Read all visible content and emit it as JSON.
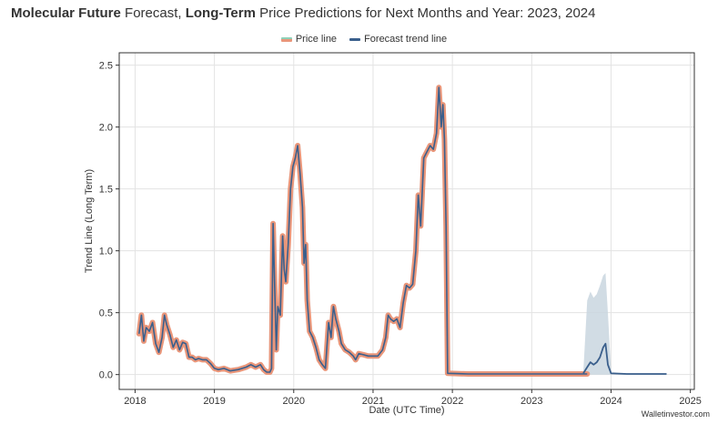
{
  "title": {
    "bold1": "Molecular Future",
    "text1": " Forecast, ",
    "bold2": "Long-Term",
    "text2": " Price Predictions for Next Months and Year: 2023, 2024"
  },
  "watermark": "Walletinvestor.com",
  "colors": {
    "price_outer": "#e9967a",
    "price_inner": "#8ed1b8",
    "trend": "#3a5f8c",
    "band": "#c9d6df"
  },
  "chart_data": {
    "type": "line",
    "xlabel": "Date (UTC Time)",
    "ylabel": "Trend Line (Long Term)",
    "xlim": [
      2017.8,
      2025.05
    ],
    "ylim": [
      -0.12,
      2.6
    ],
    "x_ticks": [
      2018,
      2019,
      2020,
      2021,
      2022,
      2023,
      2024,
      2025
    ],
    "y_ticks": [
      0.0,
      0.5,
      1.0,
      1.5,
      2.0,
      2.5
    ],
    "grid": true,
    "legend": {
      "position": "top-center",
      "entries": [
        "Price line",
        "Forecast trend line"
      ]
    },
    "series": [
      {
        "name": "Price line",
        "points": [
          [
            2018.05,
            0.33
          ],
          [
            2018.08,
            0.48
          ],
          [
            2018.11,
            0.27
          ],
          [
            2018.14,
            0.38
          ],
          [
            2018.18,
            0.35
          ],
          [
            2018.22,
            0.42
          ],
          [
            2018.26,
            0.25
          ],
          [
            2018.3,
            0.18
          ],
          [
            2018.34,
            0.3
          ],
          [
            2018.37,
            0.48
          ],
          [
            2018.4,
            0.4
          ],
          [
            2018.44,
            0.32
          ],
          [
            2018.48,
            0.22
          ],
          [
            2018.52,
            0.28
          ],
          [
            2018.56,
            0.2
          ],
          [
            2018.6,
            0.26
          ],
          [
            2018.64,
            0.25
          ],
          [
            2018.68,
            0.14
          ],
          [
            2018.72,
            0.14
          ],
          [
            2018.76,
            0.12
          ],
          [
            2018.8,
            0.13
          ],
          [
            2018.85,
            0.12
          ],
          [
            2018.9,
            0.12
          ],
          [
            2018.95,
            0.09
          ],
          [
            2019.0,
            0.05
          ],
          [
            2019.05,
            0.04
          ],
          [
            2019.12,
            0.05
          ],
          [
            2019.2,
            0.03
          ],
          [
            2019.3,
            0.04
          ],
          [
            2019.4,
            0.06
          ],
          [
            2019.46,
            0.08
          ],
          [
            2019.52,
            0.06
          ],
          [
            2019.58,
            0.08
          ],
          [
            2019.62,
            0.04
          ],
          [
            2019.66,
            0.02
          ],
          [
            2019.7,
            0.02
          ],
          [
            2019.72,
            0.05
          ],
          [
            2019.74,
            1.22
          ],
          [
            2019.76,
            0.7
          ],
          [
            2019.78,
            0.2
          ],
          [
            2019.8,
            0.55
          ],
          [
            2019.83,
            0.48
          ],
          [
            2019.86,
            1.12
          ],
          [
            2019.88,
            0.85
          ],
          [
            2019.9,
            0.75
          ],
          [
            2019.93,
            1.05
          ],
          [
            2019.96,
            1.5
          ],
          [
            2019.99,
            1.68
          ],
          [
            2020.02,
            1.75
          ],
          [
            2020.05,
            1.85
          ],
          [
            2020.08,
            1.62
          ],
          [
            2020.11,
            1.35
          ],
          [
            2020.13,
            0.9
          ],
          [
            2020.15,
            1.05
          ],
          [
            2020.17,
            0.6
          ],
          [
            2020.2,
            0.35
          ],
          [
            2020.24,
            0.3
          ],
          [
            2020.28,
            0.22
          ],
          [
            2020.32,
            0.12
          ],
          [
            2020.36,
            0.08
          ],
          [
            2020.4,
            0.05
          ],
          [
            2020.44,
            0.42
          ],
          [
            2020.47,
            0.3
          ],
          [
            2020.5,
            0.55
          ],
          [
            2020.53,
            0.45
          ],
          [
            2020.57,
            0.35
          ],
          [
            2020.6,
            0.25
          ],
          [
            2020.65,
            0.2
          ],
          [
            2020.7,
            0.18
          ],
          [
            2020.75,
            0.15
          ],
          [
            2020.78,
            0.12
          ],
          [
            2020.82,
            0.17
          ],
          [
            2020.88,
            0.16
          ],
          [
            2020.94,
            0.15
          ],
          [
            2021.0,
            0.15
          ],
          [
            2021.06,
            0.15
          ],
          [
            2021.12,
            0.2
          ],
          [
            2021.16,
            0.3
          ],
          [
            2021.19,
            0.48
          ],
          [
            2021.22,
            0.45
          ],
          [
            2021.26,
            0.43
          ],
          [
            2021.3,
            0.45
          ],
          [
            2021.34,
            0.38
          ],
          [
            2021.38,
            0.58
          ],
          [
            2021.42,
            0.72
          ],
          [
            2021.46,
            0.7
          ],
          [
            2021.5,
            0.73
          ],
          [
            2021.54,
            1.0
          ],
          [
            2021.57,
            1.45
          ],
          [
            2021.6,
            1.2
          ],
          [
            2021.64,
            1.75
          ],
          [
            2021.68,
            1.8
          ],
          [
            2021.72,
            1.85
          ],
          [
            2021.76,
            1.82
          ],
          [
            2021.8,
            1.95
          ],
          [
            2021.83,
            2.32
          ],
          [
            2021.86,
            2.0
          ],
          [
            2021.88,
            2.18
          ],
          [
            2021.9,
            1.9
          ],
          [
            2021.92,
            1.2
          ],
          [
            2021.94,
            0.01
          ],
          [
            2022.2,
            0.005
          ],
          [
            2022.6,
            0.005
          ],
          [
            2023.0,
            0.005
          ],
          [
            2023.4,
            0.005
          ],
          [
            2023.7,
            0.005
          ]
        ]
      },
      {
        "name": "Forecast trend line",
        "points": [
          [
            2023.65,
            0.01
          ],
          [
            2023.7,
            0.06
          ],
          [
            2023.74,
            0.1
          ],
          [
            2023.78,
            0.08
          ],
          [
            2023.82,
            0.1
          ],
          [
            2023.86,
            0.14
          ],
          [
            2023.9,
            0.22
          ],
          [
            2023.93,
            0.25
          ],
          [
            2023.96,
            0.08
          ],
          [
            2024.0,
            0.01
          ],
          [
            2024.2,
            0.005
          ],
          [
            2024.5,
            0.005
          ],
          [
            2024.7,
            0.005
          ]
        ]
      }
    ],
    "forecast_band": {
      "upper": [
        [
          2023.65,
          0.02
        ],
        [
          2023.7,
          0.6
        ],
        [
          2023.74,
          0.67
        ],
        [
          2023.78,
          0.62
        ],
        [
          2023.82,
          0.65
        ],
        [
          2023.86,
          0.72
        ],
        [
          2023.9,
          0.8
        ],
        [
          2023.93,
          0.82
        ],
        [
          2023.96,
          0.5
        ],
        [
          2024.0,
          0.03
        ]
      ],
      "lower": [
        [
          2023.65,
          0.0
        ],
        [
          2023.7,
          0.0
        ],
        [
          2023.8,
          0.0
        ],
        [
          2023.9,
          0.0
        ],
        [
          2024.0,
          0.0
        ]
      ]
    }
  }
}
